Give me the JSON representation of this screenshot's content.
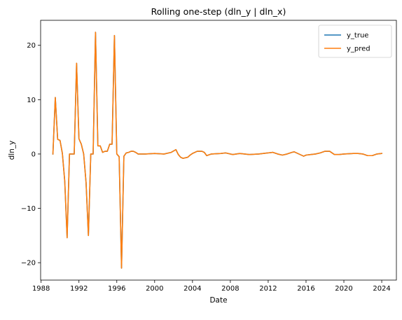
{
  "chart_data": {
    "type": "line",
    "title": "Rolling one-step (dln_y | dln_x)",
    "xlabel": "Date",
    "ylabel": "dln_y",
    "xlim": [
      1987.95,
      2025.55
    ],
    "ylim": [
      -23.2,
      24.6
    ],
    "xticks": [
      1988,
      1992,
      1996,
      2000,
      2004,
      2008,
      2012,
      2016,
      2020,
      2024
    ],
    "yticks": [
      -20,
      -10,
      0,
      10,
      20
    ],
    "legend_position": "top-right",
    "grid": false,
    "series": [
      {
        "name": "y_true",
        "color": "#1f77b4",
        "points": [
          [
            1989.25,
            0
          ],
          [
            1989.5,
            10.4
          ],
          [
            1989.75,
            2.7
          ],
          [
            1990.0,
            2.5
          ],
          [
            1990.25,
            0.1
          ],
          [
            1990.5,
            -5.0
          ],
          [
            1990.75,
            -15.4
          ],
          [
            1991.0,
            0.0
          ],
          [
            1991.25,
            0.0
          ],
          [
            1991.5,
            0.0
          ],
          [
            1991.75,
            16.7
          ],
          [
            1992.0,
            2.8
          ],
          [
            1992.25,
            1.8
          ],
          [
            1992.5,
            0.0
          ],
          [
            1992.75,
            -5.2
          ],
          [
            1993.0,
            -15.0
          ],
          [
            1993.25,
            0.0
          ],
          [
            1993.5,
            0.0
          ],
          [
            1993.75,
            22.4
          ],
          [
            1994.0,
            1.5
          ],
          [
            1994.25,
            1.5
          ],
          [
            1994.5,
            0.3
          ],
          [
            1994.75,
            0.5
          ],
          [
            1995.0,
            0.5
          ],
          [
            1995.25,
            1.8
          ],
          [
            1995.5,
            1.8
          ],
          [
            1995.75,
            21.8
          ],
          [
            1996.0,
            0.0
          ],
          [
            1996.25,
            -0.5
          ],
          [
            1996.5,
            -21.0
          ],
          [
            1996.75,
            -0.4
          ],
          [
            1997.0,
            0.2
          ],
          [
            1997.25,
            0.3
          ],
          [
            1997.5,
            0.5
          ],
          [
            1997.75,
            0.5
          ],
          [
            1998.0,
            0.3
          ],
          [
            1998.25,
            0.0
          ],
          [
            1999.0,
            0.0
          ],
          [
            2000.0,
            0.1
          ],
          [
            2001.0,
            0.0
          ],
          [
            2001.5,
            0.2
          ],
          [
            2001.75,
            0.3
          ],
          [
            2002.25,
            0.8
          ],
          [
            2002.5,
            -0.1
          ],
          [
            2002.75,
            -0.6
          ],
          [
            2003.0,
            -0.8
          ],
          [
            2003.5,
            -0.6
          ],
          [
            2003.75,
            -0.2
          ],
          [
            2004.0,
            0.1
          ],
          [
            2004.5,
            0.5
          ],
          [
            2005.0,
            0.5
          ],
          [
            2005.25,
            0.3
          ],
          [
            2005.5,
            -0.3
          ],
          [
            2006.0,
            0.0
          ],
          [
            2007.0,
            0.1
          ],
          [
            2007.5,
            0.2
          ],
          [
            2008.25,
            -0.1
          ],
          [
            2009.0,
            0.1
          ],
          [
            2009.5,
            0.0
          ],
          [
            2010.0,
            -0.1
          ],
          [
            2011.0,
            0.0
          ],
          [
            2012.0,
            0.2
          ],
          [
            2012.5,
            0.3
          ],
          [
            2013.0,
            0.0
          ],
          [
            2013.5,
            -0.2
          ],
          [
            2014.0,
            0.0
          ],
          [
            2014.5,
            0.3
          ],
          [
            2014.75,
            0.4
          ],
          [
            2015.25,
            0.0
          ],
          [
            2015.75,
            -0.4
          ],
          [
            2016.0,
            -0.2
          ],
          [
            2016.5,
            -0.1
          ],
          [
            2017.0,
            0.0
          ],
          [
            2017.5,
            0.2
          ],
          [
            2018.0,
            0.5
          ],
          [
            2018.5,
            0.5
          ],
          [
            2019.0,
            -0.1
          ],
          [
            2019.5,
            -0.1
          ],
          [
            2020.0,
            0.0
          ],
          [
            2021.0,
            0.1
          ],
          [
            2021.5,
            0.1
          ],
          [
            2022.0,
            0.0
          ],
          [
            2022.5,
            -0.3
          ],
          [
            2023.0,
            -0.3
          ],
          [
            2023.5,
            0.0
          ],
          [
            2024.0,
            0.1
          ]
        ]
      },
      {
        "name": "y_pred",
        "color": "#ff7f0e",
        "points": [
          [
            1989.25,
            0
          ],
          [
            1989.5,
            10.4
          ],
          [
            1989.75,
            2.7
          ],
          [
            1990.0,
            2.5
          ],
          [
            1990.25,
            0.1
          ],
          [
            1990.5,
            -5.0
          ],
          [
            1990.75,
            -15.4
          ],
          [
            1991.0,
            0.0
          ],
          [
            1991.25,
            0.0
          ],
          [
            1991.5,
            0.0
          ],
          [
            1991.75,
            16.7
          ],
          [
            1992.0,
            2.8
          ],
          [
            1992.25,
            1.8
          ],
          [
            1992.5,
            0.0
          ],
          [
            1992.75,
            -5.2
          ],
          [
            1993.0,
            -15.0
          ],
          [
            1993.25,
            0.0
          ],
          [
            1993.5,
            0.0
          ],
          [
            1993.75,
            22.4
          ],
          [
            1994.0,
            1.5
          ],
          [
            1994.25,
            1.5
          ],
          [
            1994.5,
            0.3
          ],
          [
            1994.75,
            0.5
          ],
          [
            1995.0,
            0.5
          ],
          [
            1995.25,
            1.8
          ],
          [
            1995.5,
            1.8
          ],
          [
            1995.75,
            21.8
          ],
          [
            1996.0,
            0.0
          ],
          [
            1996.25,
            -0.5
          ],
          [
            1996.5,
            -21.0
          ],
          [
            1996.75,
            -0.4
          ],
          [
            1997.0,
            0.2
          ],
          [
            1997.25,
            0.3
          ],
          [
            1997.5,
            0.5
          ],
          [
            1997.75,
            0.5
          ],
          [
            1998.0,
            0.3
          ],
          [
            1998.25,
            0.0
          ],
          [
            1999.0,
            0.0
          ],
          [
            2000.0,
            0.1
          ],
          [
            2001.0,
            0.0
          ],
          [
            2001.5,
            0.2
          ],
          [
            2001.75,
            0.3
          ],
          [
            2002.25,
            0.8
          ],
          [
            2002.5,
            -0.1
          ],
          [
            2002.75,
            -0.6
          ],
          [
            2003.0,
            -0.8
          ],
          [
            2003.5,
            -0.6
          ],
          [
            2003.75,
            -0.2
          ],
          [
            2004.0,
            0.1
          ],
          [
            2004.5,
            0.5
          ],
          [
            2005.0,
            0.5
          ],
          [
            2005.25,
            0.3
          ],
          [
            2005.5,
            -0.3
          ],
          [
            2006.0,
            0.0
          ],
          [
            2007.0,
            0.1
          ],
          [
            2007.5,
            0.2
          ],
          [
            2008.25,
            -0.1
          ],
          [
            2009.0,
            0.1
          ],
          [
            2009.5,
            0.0
          ],
          [
            2010.0,
            -0.1
          ],
          [
            2011.0,
            0.0
          ],
          [
            2012.0,
            0.2
          ],
          [
            2012.5,
            0.3
          ],
          [
            2013.0,
            0.0
          ],
          [
            2013.5,
            -0.2
          ],
          [
            2014.0,
            0.0
          ],
          [
            2014.5,
            0.3
          ],
          [
            2014.75,
            0.4
          ],
          [
            2015.25,
            0.0
          ],
          [
            2015.75,
            -0.4
          ],
          [
            2016.0,
            -0.2
          ],
          [
            2016.5,
            -0.1
          ],
          [
            2017.0,
            0.0
          ],
          [
            2017.5,
            0.2
          ],
          [
            2018.0,
            0.5
          ],
          [
            2018.5,
            0.5
          ],
          [
            2019.0,
            -0.1
          ],
          [
            2019.5,
            -0.1
          ],
          [
            2020.0,
            0.0
          ],
          [
            2021.0,
            0.1
          ],
          [
            2021.5,
            0.1
          ],
          [
            2022.0,
            0.0
          ],
          [
            2022.5,
            -0.3
          ],
          [
            2023.0,
            -0.3
          ],
          [
            2023.5,
            0.0
          ],
          [
            2024.0,
            0.1
          ]
        ]
      }
    ]
  }
}
